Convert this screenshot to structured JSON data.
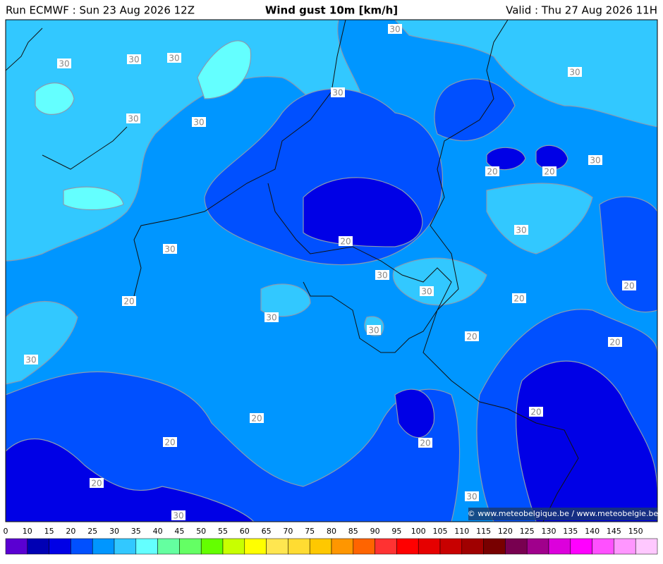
{
  "header": {
    "run": "Run ECMWF : Sun 23 Aug 2026 12Z",
    "title": "Wind gust 10m [km/h]",
    "valid": "Valid : Thu 27 Aug 2026 11H"
  },
  "map": {
    "contour_labels": [
      30,
      30,
      30,
      30,
      30,
      30,
      30,
      30,
      30,
      20,
      20,
      30,
      20,
      30,
      30,
      30,
      20,
      20,
      20,
      30,
      30,
      20,
      20,
      30,
      20,
      20,
      20,
      20,
      20,
      30,
      30
    ],
    "credit": "© www.meteobelgique.be / www.meteobelgie.be"
  },
  "legend": {
    "ticks": [
      0,
      10,
      15,
      20,
      25,
      30,
      35,
      40,
      45,
      50,
      55,
      60,
      65,
      70,
      75,
      80,
      85,
      90,
      95,
      100,
      105,
      110,
      115,
      120,
      125,
      130,
      135,
      140,
      145,
      150
    ],
    "colors": [
      "#5a00d2",
      "#0000b4",
      "#0000e6",
      "#0050ff",
      "#0096ff",
      "#32c8ff",
      "#64ffff",
      "#64ffa0",
      "#64ff64",
      "#64ff00",
      "#c8ff00",
      "#ffff00",
      "#ffe650",
      "#ffdc32",
      "#ffc800",
      "#ff9600",
      "#ff6400",
      "#ff3232",
      "#ff0000",
      "#e60000",
      "#c80000",
      "#a00000",
      "#780000",
      "#780050",
      "#a0008c",
      "#dc00dc",
      "#ff00ff",
      "#ff50ff",
      "#ff96ff",
      "#ffc8ff"
    ]
  }
}
